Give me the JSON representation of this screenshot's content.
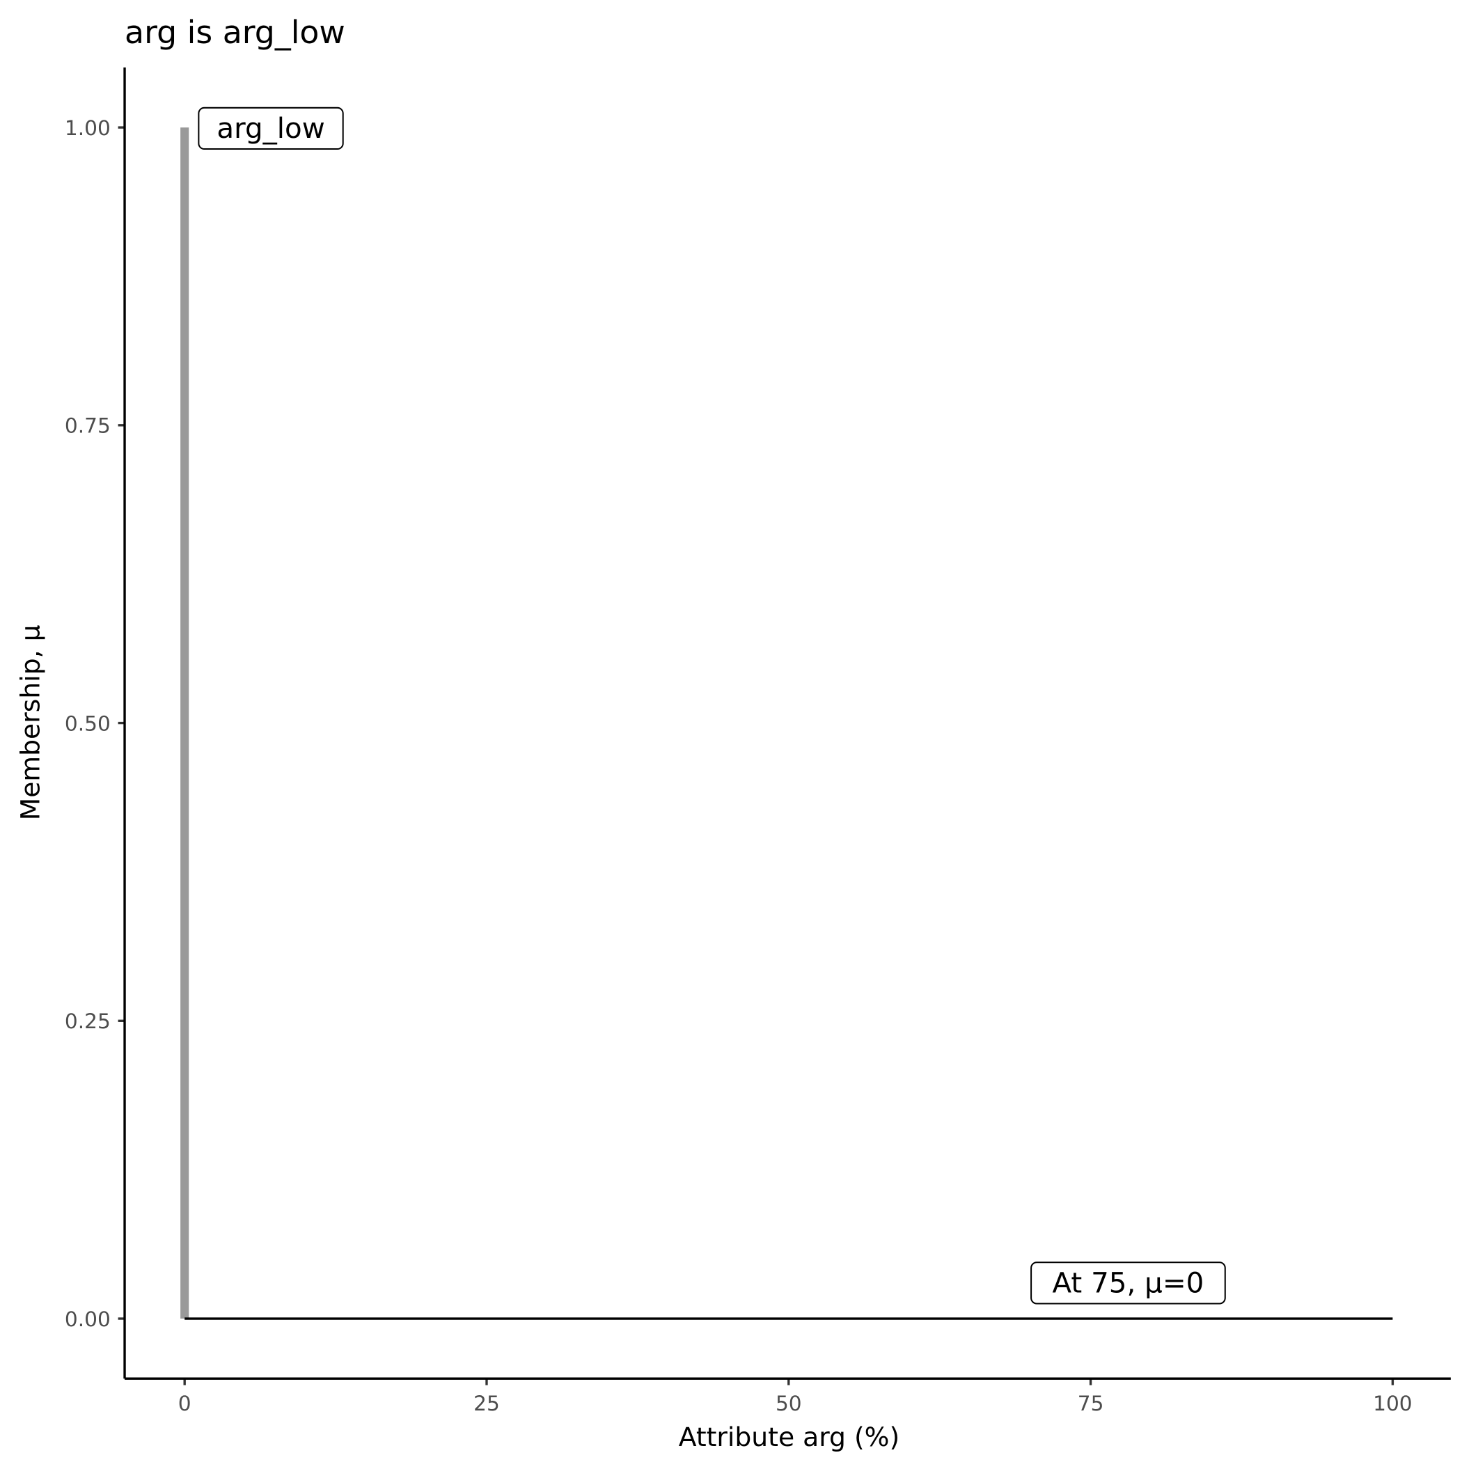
{
  "chart_data": {
    "type": "line",
    "title": "arg is arg_low",
    "xlabel": "Attribute arg (%)",
    "ylabel": "Membership, μ",
    "xlim": [
      -5,
      105
    ],
    "ylim": [
      -0.05,
      1.05
    ],
    "x_ticks": [
      0,
      25,
      50,
      75,
      100
    ],
    "x_tick_labels": [
      "0",
      "25",
      "50",
      "75",
      "100"
    ],
    "y_ticks": [
      0,
      0.25,
      0.5,
      0.75,
      1
    ],
    "y_tick_labels": [
      "0.00",
      "0.25",
      "0.50",
      "0.75",
      "1.00"
    ],
    "grid": false,
    "series": [
      {
        "color": "#999999",
        "x": [
          0,
          0
        ],
        "y": [
          0,
          1
        ]
      },
      {
        "color": "#000000",
        "x": [
          0,
          100
        ],
        "y": [
          0,
          0
        ]
      }
    ],
    "annotations": [
      {
        "text": "arg_low",
        "x": 0,
        "y": 1
      },
      {
        "text": "At 75, μ=0",
        "x": 75,
        "y": 0
      }
    ]
  }
}
